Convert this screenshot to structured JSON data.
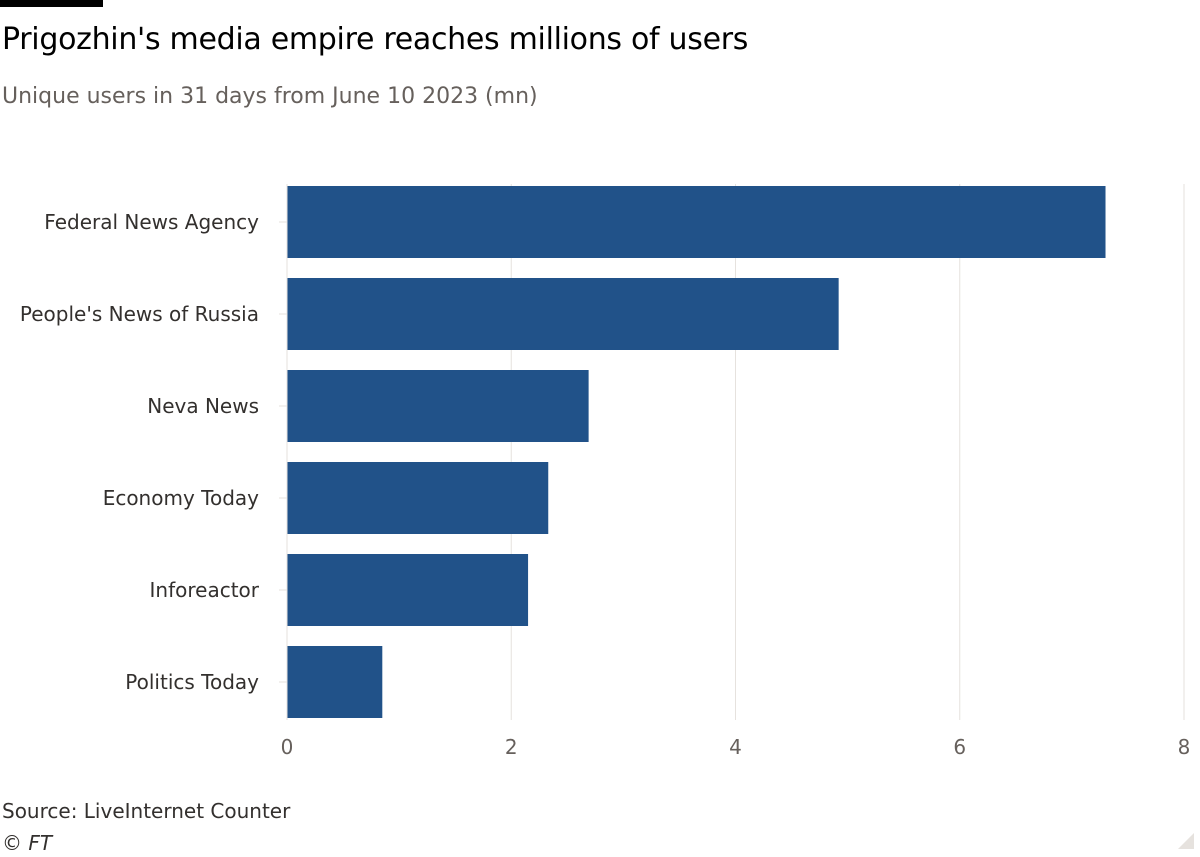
{
  "header": {
    "title": "Prigozhin's media empire reaches millions of users",
    "subtitle": "Unique users in 31 days from June 10 2023 (mn)"
  },
  "footer": {
    "source": "Source: LiveInternet Counter",
    "copyright": "© FT"
  },
  "colors": {
    "bar": "#215289",
    "grid": "#e6e2de",
    "axis_text": "#66605c",
    "label_text": "#33302e"
  },
  "chart_data": {
    "type": "bar",
    "orientation": "horizontal",
    "categories": [
      "Federal News Agency",
      "People's News of Russia",
      "Neva News",
      "Economy Today",
      "Inforeactor",
      "Politics Today"
    ],
    "values": [
      7.3,
      4.92,
      2.69,
      2.33,
      2.15,
      0.85
    ],
    "xlim": [
      0,
      8
    ],
    "xticks": [
      0,
      2,
      4,
      6,
      8
    ],
    "grid": true,
    "title": "Prigozhin's media empire reaches millions of users",
    "subtitle": "Unique users in 31 days from June 10 2023 (mn)",
    "xlabel": "",
    "ylabel": ""
  }
}
